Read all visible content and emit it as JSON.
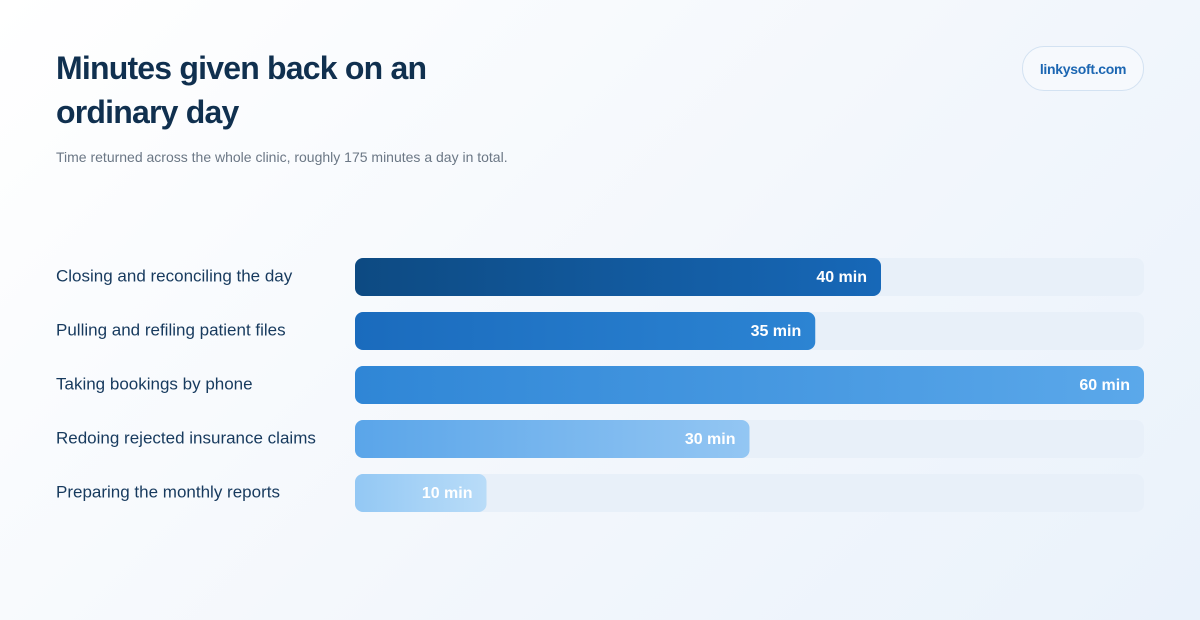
{
  "chart_data": {
    "type": "bar",
    "orientation": "horizontal",
    "title": "Minutes given back on an ordinary day",
    "subtitle": "Time returned across the whole clinic, roughly 175 minutes a day in total.",
    "badge": "linkysoft.com",
    "categories": [
      "Closing and reconciling the day",
      "Pulling and refiling patient files",
      "Taking bookings by phone",
      "Redoing rejected insurance claims",
      "Preparing the monthly reports"
    ],
    "values": [
      40,
      35,
      60,
      30,
      10
    ],
    "value_labels": [
      "40 min",
      "35 min",
      "60 min",
      "30 min",
      "10 min"
    ],
    "colors": [
      [
        "#0d4a82",
        "#1768b8"
      ],
      [
        "#1a6bbd",
        "#2c84d3"
      ],
      [
        "#2f86d6",
        "#5ba8ea"
      ],
      [
        "#5aa5e9",
        "#93c6f3"
      ],
      [
        "#93c8f4",
        "#b9dcf8"
      ]
    ],
    "track_color": "#e8f0f9"
  }
}
